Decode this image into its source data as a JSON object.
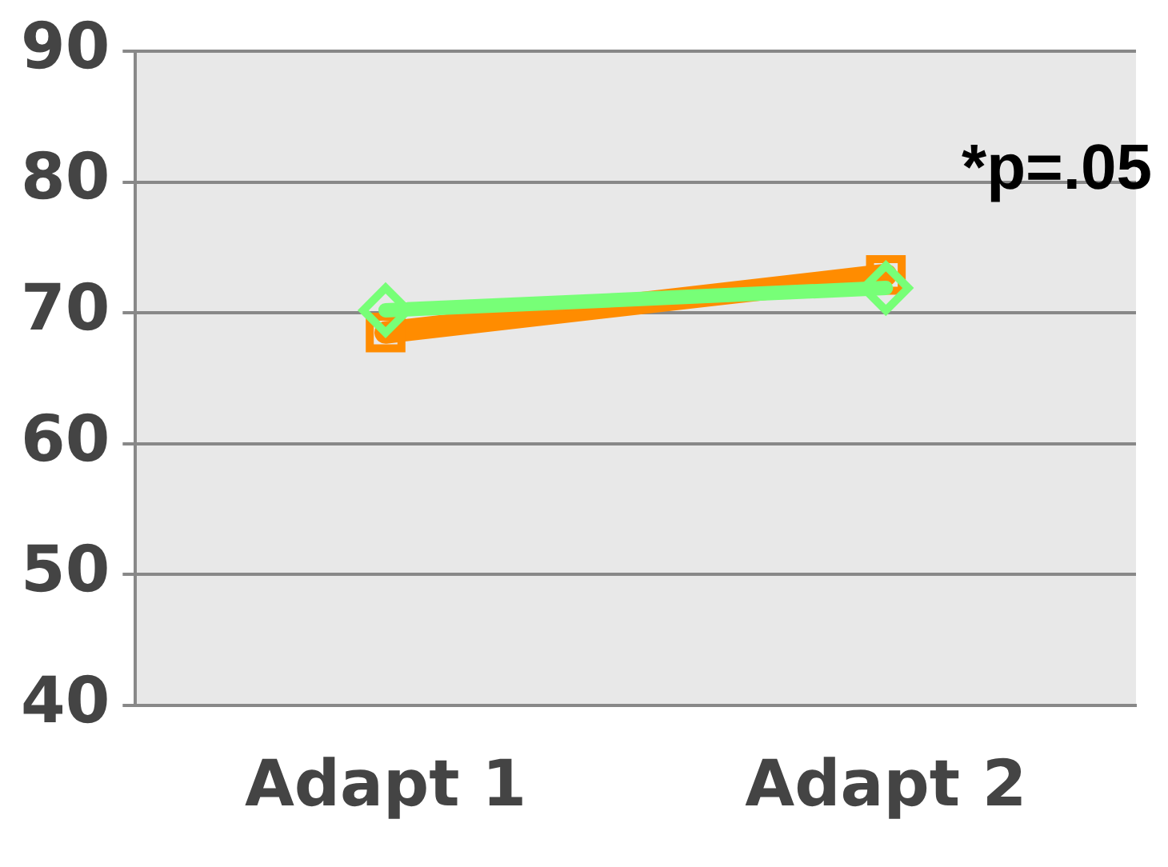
{
  "chart_data": {
    "type": "line",
    "categories": [
      "Adapt 1",
      "Adapt 2"
    ],
    "series": [
      {
        "color": "#77ff77",
        "values": [
          70.2,
          71.9
        ],
        "marker": "diamond"
      },
      {
        "color": "#ff8c00",
        "values": [
          68.5,
          72.9
        ],
        "marker": "square"
      }
    ],
    "ylim": [
      40,
      90
    ],
    "yticks": [
      40,
      50,
      60,
      70,
      80,
      90
    ],
    "grid": "y",
    "legend": false,
    "annotations": [
      "*p=.05"
    ]
  }
}
